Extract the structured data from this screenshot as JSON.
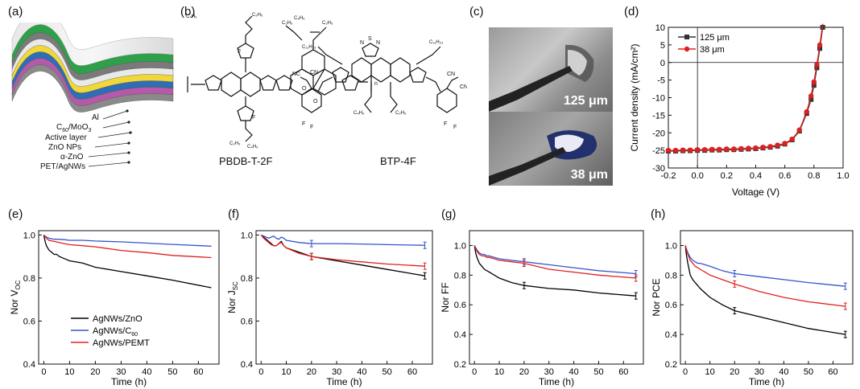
{
  "panels": {
    "a": {
      "letter": "(a)",
      "layers": [
        "Al",
        "C60/MoO3",
        "Active layer",
        "ZnO NPs",
        "α-ZnO",
        "PET/AgNWs"
      ],
      "layer_colors": [
        "#8a8a8a",
        "#b45aa8",
        "#2f6db5",
        "#f2d73b",
        "#e9e9e9",
        "#7a7a7a",
        "#2ea04a"
      ]
    },
    "b": {
      "letter": "(b)",
      "molecule1": "PBDB-T-2F",
      "molecule2": "BTP-4F"
    },
    "c": {
      "letter": "(c)",
      "label_top": "125 μm",
      "label_bottom": "38 μm"
    },
    "d": {
      "letter": "(d)"
    },
    "e": {
      "letter": "(e)"
    },
    "f": {
      "letter": "(f)"
    },
    "g": {
      "letter": "(g)"
    },
    "h": {
      "letter": "(h)"
    }
  },
  "chart_data": [
    {
      "id": "d",
      "type": "line",
      "xlabel": "Voltage (V)",
      "ylabel": "Current density (mA/cm²)",
      "xlim": [
        -0.2,
        1.0
      ],
      "ylim": [
        -30,
        10
      ],
      "xticks": [
        -0.2,
        0.0,
        0.2,
        0.4,
        0.6,
        0.8,
        1.0
      ],
      "xtick_labels": [
        "-0.2",
        "0.0",
        "0.2",
        "0.4",
        "0.6",
        "0.8",
        "1.0"
      ],
      "yticks": [
        -30,
        -25,
        -20,
        -15,
        -10,
        -5,
        0,
        5,
        10
      ],
      "ytick_labels": [
        "-30",
        "-25",
        "-20",
        "-15",
        "-10",
        "-5",
        "0",
        "5",
        "10"
      ],
      "legend": "top-left",
      "series": [
        {
          "name": "125 μm",
          "color": "#333333",
          "marker": "square",
          "x": [
            -0.2,
            -0.15,
            -0.1,
            -0.05,
            0,
            0.05,
            0.1,
            0.15,
            0.2,
            0.25,
            0.3,
            0.35,
            0.4,
            0.45,
            0.5,
            0.55,
            0.6,
            0.65,
            0.7,
            0.75,
            0.78,
            0.8,
            0.82,
            0.84,
            0.86
          ],
          "y": [
            -25.2,
            -25.2,
            -25.1,
            -25.1,
            -25.0,
            -25.0,
            -24.9,
            -24.9,
            -24.8,
            -24.8,
            -24.7,
            -24.6,
            -24.5,
            -24.3,
            -24.1,
            -23.8,
            -23.2,
            -22.0,
            -19.5,
            -14.5,
            -10.5,
            -6.5,
            -1.5,
            4.0,
            10.0
          ]
        },
        {
          "name": "38 μm",
          "color": "#e02020",
          "marker": "circle",
          "x": [
            -0.2,
            -0.15,
            -0.1,
            -0.05,
            0,
            0.05,
            0.1,
            0.15,
            0.2,
            0.25,
            0.3,
            0.35,
            0.4,
            0.45,
            0.5,
            0.55,
            0.6,
            0.65,
            0.7,
            0.75,
            0.78,
            0.8,
            0.82,
            0.84,
            0.86
          ],
          "y": [
            -25.0,
            -25.0,
            -24.9,
            -24.9,
            -24.8,
            -24.8,
            -24.7,
            -24.7,
            -24.6,
            -24.6,
            -24.5,
            -24.4,
            -24.3,
            -24.1,
            -23.9,
            -23.5,
            -23.0,
            -21.8,
            -19.2,
            -14.0,
            -9.5,
            -5.5,
            -0.5,
            5.0,
            11.0
          ]
        }
      ]
    },
    {
      "id": "e",
      "type": "line",
      "xlabel": "Time (h)",
      "ylabel": "Nor VOC",
      "ylabel_main": "Nor V",
      "ylabel_sub": "OC",
      "xlim": [
        -2,
        68
      ],
      "ylim": [
        0.4,
        1.02
      ],
      "xticks": [
        0,
        10,
        20,
        30,
        40,
        50,
        60
      ],
      "xtick_labels": [
        "0",
        "10",
        "20",
        "30",
        "40",
        "50",
        "60"
      ],
      "yticks": [
        0.4,
        0.6,
        0.8,
        1.0
      ],
      "ytick_labels": [
        "0.4",
        "0.6",
        "0.8",
        "1.0"
      ],
      "legend": "bottom-left",
      "series": [
        {
          "name": "AgNWs/ZnO",
          "color": "#000000",
          "x": [
            0,
            0.5,
            1,
            1.5,
            2,
            3,
            4,
            5,
            6,
            8,
            10,
            15,
            20,
            30,
            40,
            50,
            65
          ],
          "y": [
            1.0,
            0.97,
            0.95,
            0.94,
            0.93,
            0.92,
            0.91,
            0.91,
            0.9,
            0.89,
            0.88,
            0.87,
            0.85,
            0.83,
            0.81,
            0.79,
            0.755
          ]
        },
        {
          "name": "AgNWs/C",
          "name_sub": "60",
          "color": "#3355cc",
          "x": [
            0,
            1,
            2,
            4,
            6,
            8,
            10,
            15,
            20,
            30,
            40,
            50,
            65
          ],
          "y": [
            1.0,
            0.99,
            0.985,
            0.98,
            0.98,
            0.978,
            0.975,
            0.975,
            0.972,
            0.968,
            0.962,
            0.956,
            0.948
          ]
        },
        {
          "name": "AgNWs/PEMT",
          "color": "#e02020",
          "x": [
            0,
            1,
            2,
            4,
            6,
            8,
            10,
            15,
            20,
            30,
            40,
            50,
            65
          ],
          "y": [
            1.0,
            0.985,
            0.975,
            0.97,
            0.965,
            0.96,
            0.955,
            0.95,
            0.945,
            0.928,
            0.918,
            0.905,
            0.895
          ]
        }
      ]
    },
    {
      "id": "f",
      "type": "line",
      "xlabel": "Time (h)",
      "ylabel": "Nor JSC",
      "ylabel_main": "Nor J",
      "ylabel_sub": "SC",
      "xlim": [
        -2,
        68
      ],
      "ylim": [
        0.4,
        1.02
      ],
      "xticks": [
        0,
        10,
        20,
        30,
        40,
        50,
        60
      ],
      "xtick_labels": [
        "0",
        "10",
        "20",
        "30",
        "40",
        "50",
        "60"
      ],
      "yticks": [
        0.4,
        0.6,
        0.8,
        1.0
      ],
      "ytick_labels": [
        "0.4",
        "0.6",
        "0.8",
        "1.0"
      ],
      "series": [
        {
          "name": "AgNWs/ZnO",
          "color": "#000000",
          "x": [
            0,
            1,
            2,
            3,
            4,
            5,
            6,
            7,
            8,
            9,
            10,
            15,
            20,
            30,
            40,
            50,
            65
          ],
          "y": [
            1.0,
            0.99,
            0.98,
            0.97,
            0.96,
            0.95,
            0.95,
            0.96,
            0.97,
            0.95,
            0.94,
            0.92,
            0.9,
            0.88,
            0.86,
            0.84,
            0.81
          ]
        },
        {
          "name": "AgNWs/C60",
          "color": "#3355cc",
          "x": [
            0,
            1,
            2,
            3,
            4,
            5,
            6,
            7,
            8,
            9,
            10,
            15,
            20,
            30,
            40,
            50,
            65
          ],
          "y": [
            1.0,
            0.995,
            0.99,
            0.985,
            0.99,
            0.995,
            0.985,
            0.98,
            0.99,
            0.985,
            0.975,
            0.965,
            0.96,
            0.96,
            0.958,
            0.955,
            0.952
          ]
        },
        {
          "name": "AgNWs/PEMT",
          "color": "#e02020",
          "x": [
            0,
            1,
            2,
            3,
            4,
            5,
            6,
            7,
            8,
            9,
            10,
            15,
            20,
            30,
            40,
            50,
            65
          ],
          "y": [
            1.0,
            0.985,
            0.975,
            0.965,
            0.955,
            0.95,
            0.95,
            0.96,
            0.965,
            0.95,
            0.94,
            0.915,
            0.9,
            0.885,
            0.875,
            0.865,
            0.855
          ]
        }
      ]
    },
    {
      "id": "g",
      "type": "line",
      "xlabel": "Time (h)",
      "ylabel": "Nor FF",
      "xlim": [
        -2,
        68
      ],
      "ylim": [
        0.2,
        1.1
      ],
      "xticks": [
        0,
        10,
        20,
        30,
        40,
        50,
        60
      ],
      "xtick_labels": [
        "0",
        "10",
        "20",
        "30",
        "40",
        "50",
        "60"
      ],
      "yticks": [
        0.2,
        0.4,
        0.6,
        0.8,
        1.0
      ],
      "ytick_labels": [
        "0.2",
        "0.4",
        "0.6",
        "0.8",
        "1.0"
      ],
      "series": [
        {
          "name": "AgNWs/ZnO",
          "color": "#000000",
          "x": [
            0,
            0.5,
            1,
            2,
            3,
            4,
            5,
            6,
            8,
            10,
            15,
            20,
            30,
            40,
            50,
            65
          ],
          "y": [
            1.0,
            0.95,
            0.92,
            0.88,
            0.86,
            0.84,
            0.83,
            0.82,
            0.8,
            0.78,
            0.75,
            0.73,
            0.71,
            0.7,
            0.68,
            0.66
          ]
        },
        {
          "name": "AgNWs/C60",
          "color": "#3355cc",
          "x": [
            0,
            1,
            2,
            3,
            4,
            5,
            6,
            8,
            10,
            15,
            20,
            30,
            40,
            50,
            65
          ],
          "y": [
            1.0,
            0.97,
            0.95,
            0.94,
            0.94,
            0.93,
            0.93,
            0.92,
            0.91,
            0.9,
            0.89,
            0.87,
            0.85,
            0.83,
            0.81
          ]
        },
        {
          "name": "AgNWs/PEMT",
          "color": "#e02020",
          "x": [
            0,
            1,
            2,
            3,
            4,
            5,
            6,
            8,
            10,
            15,
            20,
            30,
            40,
            50,
            65
          ],
          "y": [
            1.0,
            0.96,
            0.94,
            0.93,
            0.93,
            0.92,
            0.92,
            0.91,
            0.9,
            0.89,
            0.88,
            0.84,
            0.82,
            0.8,
            0.78
          ]
        }
      ]
    },
    {
      "id": "h",
      "type": "line",
      "xlabel": "Time (h)",
      "ylabel": "Nor PCE",
      "xlim": [
        -2,
        68
      ],
      "ylim": [
        0.2,
        1.1
      ],
      "xticks": [
        0,
        10,
        20,
        30,
        40,
        50,
        60
      ],
      "xtick_labels": [
        "0",
        "10",
        "20",
        "30",
        "40",
        "50",
        "60"
      ],
      "yticks": [
        0.2,
        0.4,
        0.6,
        0.8,
        1.0
      ],
      "ytick_labels": [
        "0.2",
        "0.4",
        "0.6",
        "0.8",
        "1.0"
      ],
      "series": [
        {
          "name": "AgNWs/ZnO",
          "color": "#000000",
          "x": [
            0,
            0.5,
            1,
            1.5,
            2,
            3,
            4,
            5,
            6,
            8,
            10,
            15,
            20,
            30,
            40,
            50,
            65
          ],
          "y": [
            1.0,
            0.93,
            0.88,
            0.84,
            0.8,
            0.77,
            0.75,
            0.73,
            0.71,
            0.68,
            0.65,
            0.6,
            0.56,
            0.52,
            0.48,
            0.44,
            0.4
          ]
        },
        {
          "name": "AgNWs/C60",
          "color": "#3355cc",
          "x": [
            0,
            1,
            2,
            3,
            4,
            5,
            6,
            8,
            10,
            15,
            20,
            30,
            40,
            50,
            65
          ],
          "y": [
            1.0,
            0.95,
            0.92,
            0.9,
            0.89,
            0.88,
            0.88,
            0.87,
            0.86,
            0.83,
            0.81,
            0.79,
            0.77,
            0.75,
            0.725
          ]
        },
        {
          "name": "AgNWs/PEMT",
          "color": "#e02020",
          "x": [
            0,
            1,
            2,
            3,
            4,
            5,
            6,
            8,
            10,
            15,
            20,
            30,
            40,
            50,
            65
          ],
          "y": [
            1.0,
            0.94,
            0.9,
            0.88,
            0.86,
            0.85,
            0.84,
            0.82,
            0.8,
            0.77,
            0.74,
            0.69,
            0.65,
            0.62,
            0.59
          ]
        }
      ]
    }
  ]
}
